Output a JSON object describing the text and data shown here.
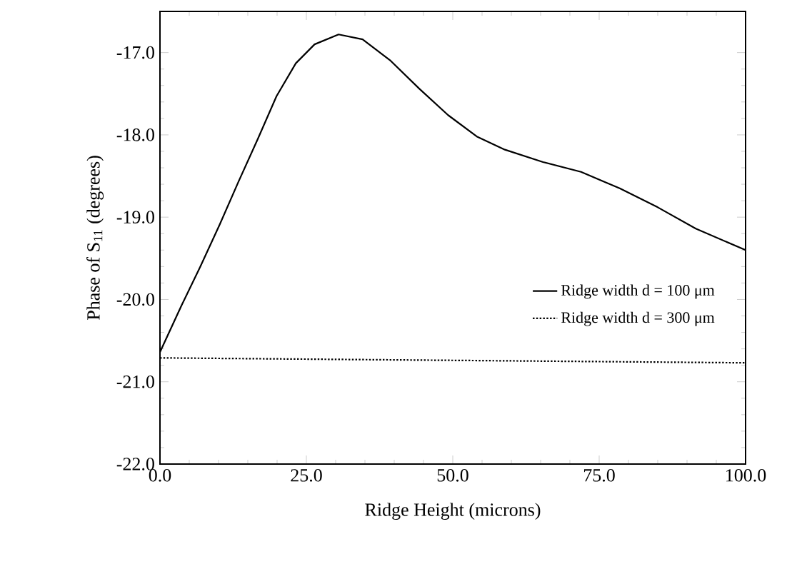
{
  "chart_data": {
    "type": "line",
    "xlabel": "Ridge Height (microns)",
    "ylabel": "Phase of S$_{11}$ (degrees)",
    "xlim": [
      0,
      100
    ],
    "ylim": [
      -22,
      -16.5
    ],
    "xticks": [
      {
        "value": 0,
        "label": "0.0"
      },
      {
        "value": 25,
        "label": "25.0"
      },
      {
        "value": 50,
        "label": "50.0"
      },
      {
        "value": 75,
        "label": "75.0"
      },
      {
        "value": 100,
        "label": "100.0"
      }
    ],
    "yticks": [
      {
        "value": -22,
        "label": "-22.0"
      },
      {
        "value": -21,
        "label": "-21.0"
      },
      {
        "value": -20,
        "label": "-20.0"
      },
      {
        "value": -19,
        "label": "-19.0"
      },
      {
        "value": -18,
        "label": "-18.0"
      },
      {
        "value": -17,
        "label": "-17.0"
      }
    ],
    "legend": "right",
    "grid": false,
    "marker": "none",
    "series": [
      {
        "name": "Ridge width d = 100 μm",
        "color": "#000000",
        "line_style": "solid",
        "x": [
          0,
          3.7,
          6.9,
          10.2,
          13.4,
          16.7,
          19.9,
          23.2,
          26.4,
          30.5,
          34.6,
          39.4,
          44.3,
          49.2,
          54.1,
          58.9,
          65.4,
          71.9,
          78.5,
          85,
          91.5,
          100
        ],
        "values": [
          -20.64,
          -20.07,
          -19.6,
          -19.09,
          -18.57,
          -18.05,
          -17.53,
          -17.13,
          -16.9,
          -16.78,
          -16.84,
          -17.1,
          -17.44,
          -17.76,
          -18.02,
          -18.18,
          -18.33,
          -18.45,
          -18.65,
          -18.88,
          -19.14,
          -19.4
        ]
      },
      {
        "name": "Ridge width d = 300 μm",
        "color": "#000000",
        "line_style": "dotted",
        "x": [
          0,
          50,
          100
        ],
        "values": [
          -20.71,
          -20.74,
          -20.77
        ]
      }
    ]
  }
}
